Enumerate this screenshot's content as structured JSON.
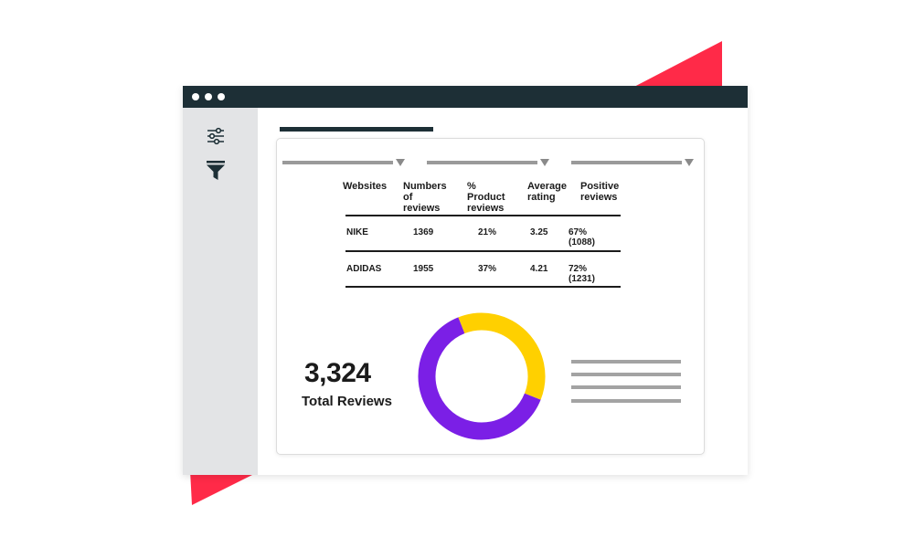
{
  "colors": {
    "accent_red": "#ff2a48",
    "titlebar": "#1d2f36",
    "sidebar": "#e3e4e6",
    "purple": "#7b1fe6",
    "yellow": "#ffd000",
    "placeholder_gray": "#9a9a9a"
  },
  "sidebar": {
    "icons": [
      "sliders-icon",
      "filter-icon"
    ]
  },
  "table": {
    "headers": [
      "Websites",
      "Numbers\nof reviews",
      "% Product\nreviews",
      "Average\nrating",
      "Positive\nreviews"
    ],
    "rows": [
      [
        "NIKE",
        "1369",
        "21%",
        "3.25",
        "67% (1088)"
      ],
      [
        "ADIDAS",
        "1955",
        "37%",
        "4.21",
        "72% (1231)"
      ]
    ]
  },
  "summary": {
    "total": "3,324",
    "label": "Total Reviews"
  },
  "chart_data": {
    "type": "pie",
    "donut": true,
    "series": [
      {
        "value": 63,
        "color": "#7b1fe6"
      },
      {
        "value": 37,
        "color": "#ffd000"
      }
    ]
  }
}
